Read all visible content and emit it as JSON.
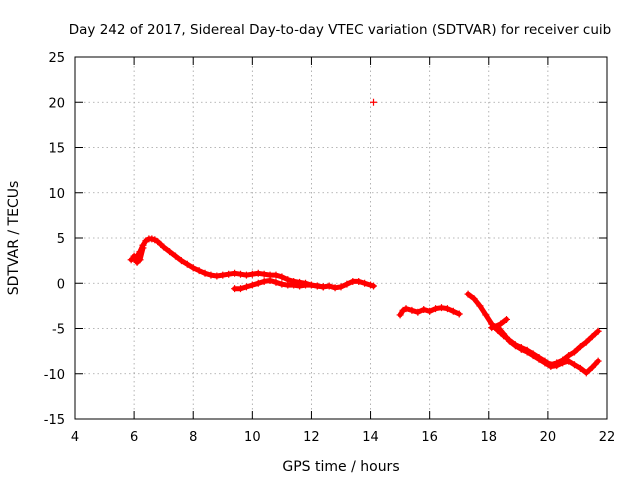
{
  "chart_data": {
    "type": "scatter",
    "title": "Day 242 of 2017, Sidereal Day-to-day VTEC variation (SDTVAR) for receiver cuib",
    "xlabel": "GPS time / hours",
    "ylabel": "SDTVAR / TECUs",
    "xlim": [
      4,
      22
    ],
    "ylim": [
      -15,
      25
    ],
    "xticks": [
      4,
      6,
      8,
      10,
      12,
      14,
      16,
      18,
      20,
      22
    ],
    "yticks": [
      -15,
      -10,
      -5,
      0,
      5,
      10,
      15,
      20,
      25
    ],
    "grid": true,
    "marker": "+",
    "color": "#ff0000",
    "series": [
      {
        "name": "main-track",
        "x": [
          5.9,
          6.0,
          6.1,
          6.2,
          6.3,
          6.4,
          6.5,
          6.6,
          6.7,
          6.8,
          6.9,
          7.0,
          7.2,
          7.4,
          7.6,
          7.8,
          8.0,
          8.2,
          8.4,
          8.6,
          8.8,
          9.0,
          9.2,
          9.4,
          9.6,
          9.8,
          10.0,
          10.2,
          10.4,
          10.6,
          10.8,
          11.0,
          11.2,
          11.4,
          11.6,
          11.8,
          12.0,
          12.2,
          12.4,
          12.6,
          12.8,
          13.0,
          13.2,
          13.4,
          13.6,
          13.8,
          14.0,
          14.1
        ],
        "y": [
          2.6,
          2.7,
          3.0,
          3.5,
          4.2,
          4.7,
          4.9,
          4.9,
          4.8,
          4.6,
          4.3,
          4.0,
          3.5,
          3.0,
          2.5,
          2.1,
          1.7,
          1.4,
          1.1,
          0.9,
          0.8,
          0.9,
          1.0,
          1.1,
          1.0,
          0.9,
          1.0,
          1.1,
          1.0,
          0.9,
          0.9,
          0.7,
          0.4,
          0.2,
          0.1,
          0.0,
          -0.2,
          -0.3,
          -0.4,
          -0.3,
          -0.5,
          -0.4,
          -0.1,
          0.2,
          0.2,
          0.0,
          -0.2,
          -0.3
        ]
      },
      {
        "name": "lower-branch",
        "x": [
          9.4,
          9.6,
          9.8,
          10.0,
          10.2,
          10.4,
          10.6,
          10.8,
          11.0,
          11.2,
          11.4,
          11.6,
          11.8,
          12.0,
          12.2,
          12.4
        ],
        "y": [
          -0.6,
          -0.6,
          -0.4,
          -0.2,
          0.0,
          0.2,
          0.3,
          0.1,
          -0.1,
          -0.2,
          -0.2,
          -0.3,
          -0.2,
          -0.2,
          -0.3,
          -0.4
        ]
      },
      {
        "name": "early-points",
        "x": [
          6.0,
          6.1,
          6.2,
          6.3
        ],
        "y": [
          3.0,
          2.3,
          2.6,
          3.9
        ]
      },
      {
        "name": "outlier",
        "x": [
          14.1
        ],
        "y": [
          20.0
        ]
      },
      {
        "name": "segment-2",
        "x": [
          15.0,
          15.1,
          15.2,
          15.4,
          15.6,
          15.8,
          16.0,
          16.2,
          16.4,
          16.6,
          16.8,
          17.0
        ],
        "y": [
          -3.5,
          -3.0,
          -2.8,
          -3.0,
          -3.2,
          -2.9,
          -3.1,
          -2.8,
          -2.7,
          -2.8,
          -3.1,
          -3.4
        ]
      },
      {
        "name": "segment-3-upper",
        "x": [
          17.3,
          17.5,
          17.7,
          17.9,
          18.1,
          18.3,
          18.5,
          18.7,
          18.9,
          19.1,
          19.3,
          19.5,
          19.7,
          19.9,
          20.1,
          20.3,
          20.5,
          20.7,
          20.9,
          21.1,
          21.3,
          21.5,
          21.7
        ],
        "y": [
          -1.2,
          -1.7,
          -2.5,
          -3.5,
          -4.5,
          -5.2,
          -5.8,
          -6.3,
          -6.8,
          -7.1,
          -7.4,
          -7.8,
          -8.2,
          -8.6,
          -9.0,
          -8.8,
          -8.5,
          -8.0,
          -7.6,
          -7.0,
          -6.5,
          -5.9,
          -5.3
        ]
      },
      {
        "name": "segment-3-lower",
        "x": [
          18.1,
          18.3,
          18.5,
          18.7,
          18.9,
          19.1,
          19.3,
          19.5,
          19.7,
          19.9,
          20.1,
          20.3,
          20.5,
          20.7,
          20.9,
          21.1,
          21.3,
          21.5,
          21.7
        ],
        "y": [
          -4.9,
          -4.8,
          -5.6,
          -6.4,
          -6.9,
          -7.3,
          -7.6,
          -8.0,
          -8.4,
          -8.8,
          -9.2,
          -9.1,
          -8.8,
          -8.6,
          -9.0,
          -9.4,
          -9.9,
          -9.3,
          -8.6
        ]
      },
      {
        "name": "segment-3-spur",
        "x": [
          18.2,
          18.4,
          18.6
        ],
        "y": [
          -4.8,
          -4.5,
          -4.0
        ]
      }
    ]
  }
}
